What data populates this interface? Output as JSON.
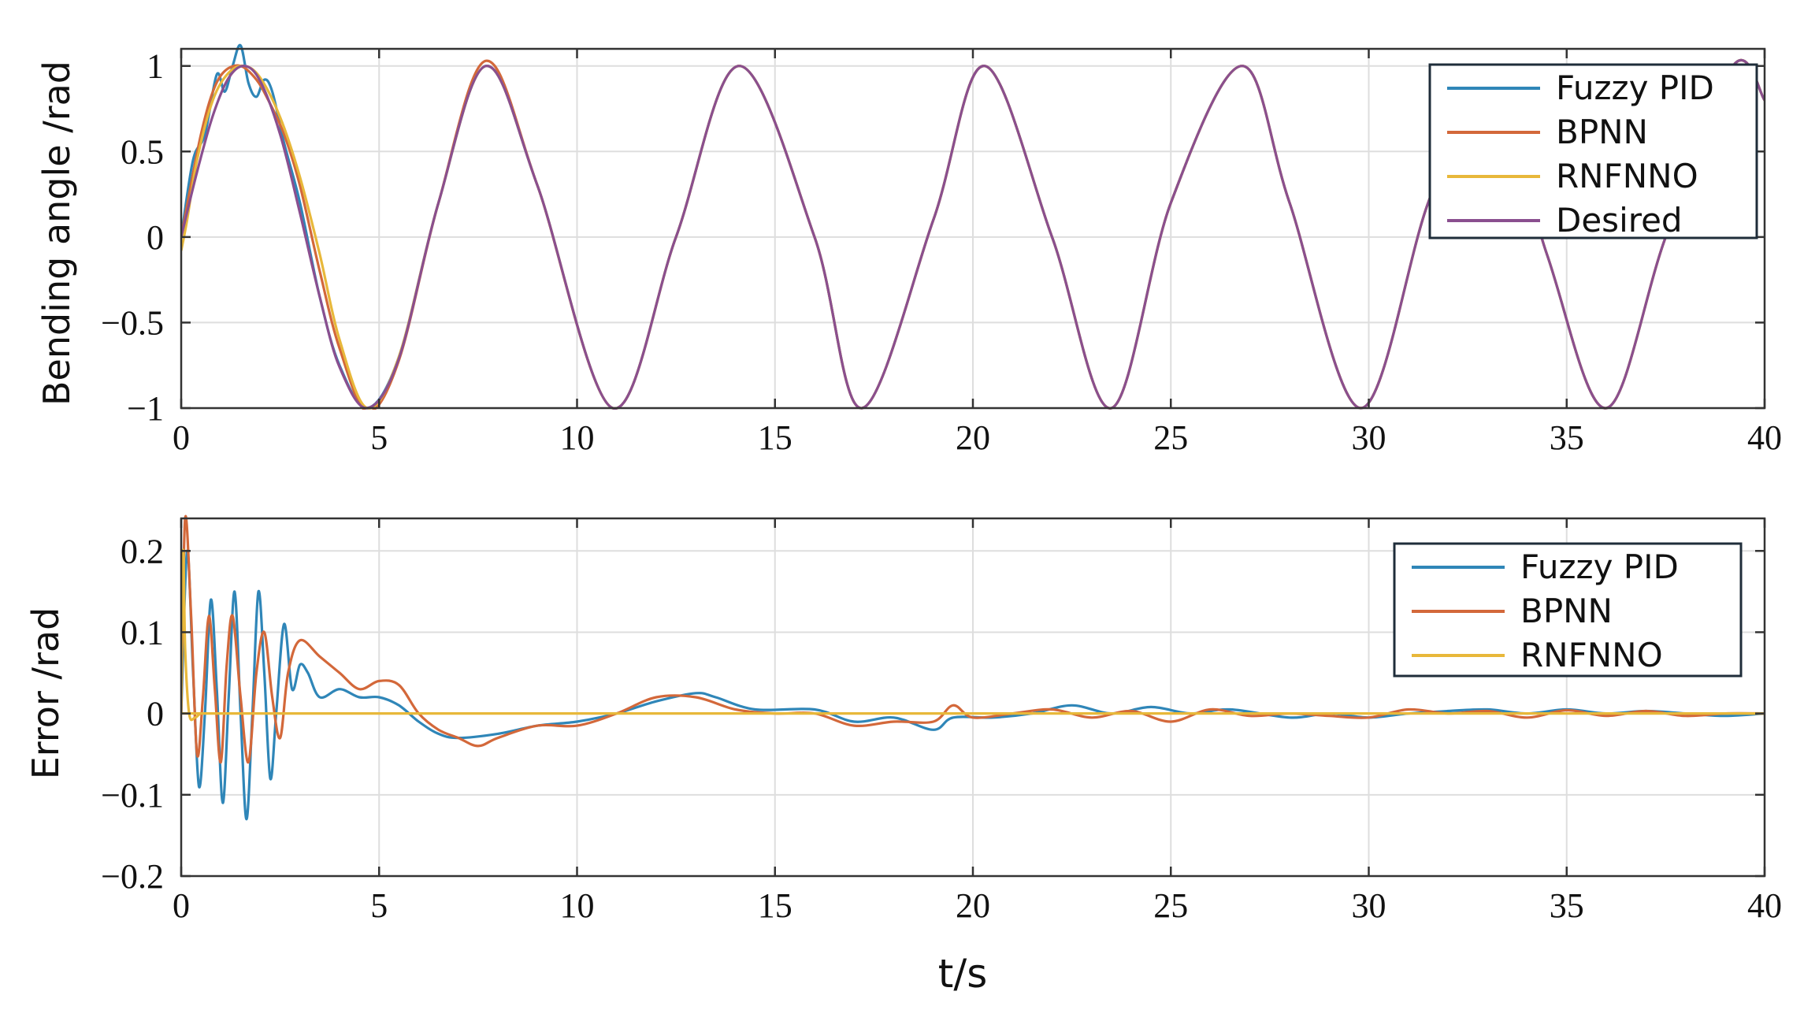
{
  "colors": {
    "Fuzzy PID": "#2f86b8",
    "BPNN": "#d3683a",
    "RNFNNO": "#e8b83a",
    "Desired": "#8a4f8f"
  },
  "chart_data": [
    {
      "type": "line",
      "id": "bending",
      "ylabel": "Bending angle /rad",
      "xlabel": "",
      "xlim": [
        0,
        40
      ],
      "ylim": [
        -1,
        1.1
      ],
      "xticks": [
        "0",
        "5",
        "10",
        "15",
        "20",
        "25",
        "30",
        "35",
        "40"
      ],
      "yticks": [
        "1",
        "0.5",
        "0",
        "−0.5",
        "−1"
      ],
      "grid": true,
      "legend": {
        "position": "top-right",
        "entries": [
          "Fuzzy PID",
          "BPNN",
          "RNFNNO",
          "Desired"
        ]
      },
      "series": [
        {
          "name": "Fuzzy PID",
          "x": [
            0,
            0.3,
            0.6,
            0.9,
            1.1,
            1.3,
            1.5,
            1.7,
            1.9,
            2.1,
            2.3,
            2.6,
            3.0,
            3.5,
            4.0,
            4.7,
            5.5,
            6.5,
            7.7,
            9.0,
            10.9,
            12.5,
            14.1,
            16.0,
            17.2,
            19.0,
            20.3,
            22.0,
            23.5,
            25.0,
            26.8,
            28.0,
            29.8,
            31.5,
            33.0,
            34.5,
            36.0,
            37.5,
            39.2,
            40.0
          ],
          "y": [
            0,
            0.45,
            0.6,
            0.95,
            0.85,
            1.0,
            1.12,
            0.9,
            0.82,
            0.92,
            0.85,
            0.55,
            0.2,
            -0.35,
            -0.75,
            -1.0,
            -0.7,
            0.2,
            1.0,
            0.3,
            -1.0,
            0.0,
            1.0,
            0.0,
            -1.0,
            0.1,
            1.0,
            0.0,
            -1.0,
            0.2,
            1.0,
            0.2,
            -1.0,
            0.2,
            1.0,
            -0.1,
            -1.0,
            0.0,
            1.0,
            0.8
          ]
        },
        {
          "name": "BPNN",
          "x": [
            0,
            0.2,
            0.5,
            0.8,
            1.1,
            1.5,
            1.9,
            2.2,
            2.6,
            3.0,
            3.5,
            4.0,
            4.7,
            5.5,
            6.5,
            7.7,
            9.0,
            10.9,
            12.5,
            14.1,
            16.0,
            17.2,
            19.0,
            20.3,
            22.0,
            23.5,
            25.0,
            26.8,
            28.0,
            29.8,
            31.5,
            33.0,
            34.5,
            36.0,
            37.5,
            39.2,
            40.0
          ],
          "y": [
            0,
            0.25,
            0.6,
            0.85,
            0.97,
            1.0,
            0.92,
            0.8,
            0.6,
            0.3,
            -0.2,
            -0.65,
            -1.02,
            -0.72,
            0.2,
            1.03,
            0.3,
            -1.0,
            0.0,
            1.0,
            0.0,
            -1.0,
            0.1,
            1.0,
            0.0,
            -1.0,
            0.2,
            1.0,
            0.2,
            -1.0,
            0.2,
            1.0,
            -0.1,
            -1.0,
            0.0,
            1.0,
            0.8
          ]
        },
        {
          "name": "RNFNNO",
          "x": [
            0,
            0.15,
            0.4,
            0.8,
            1.2,
            1.6,
            2.0,
            2.5,
            3.0,
            3.5,
            4.0,
            4.7,
            5.5,
            6.5,
            7.7,
            9.0,
            10.9,
            12.5,
            14.1,
            16.0,
            17.2,
            19.0,
            20.3,
            22.0,
            23.5,
            25.0,
            26.8,
            28.0,
            29.8,
            31.5,
            33.0,
            34.5,
            36.0,
            37.5,
            39.2,
            40.0
          ],
          "y": [
            -0.08,
            0.1,
            0.45,
            0.8,
            0.96,
            1.0,
            0.93,
            0.7,
            0.35,
            -0.1,
            -0.6,
            -1.0,
            -0.7,
            0.2,
            1.0,
            0.3,
            -1.0,
            0.0,
            1.0,
            0.0,
            -1.0,
            0.1,
            1.0,
            0.0,
            -1.0,
            0.2,
            1.0,
            0.2,
            -1.0,
            0.2,
            1.0,
            -0.1,
            -1.0,
            0.0,
            1.0,
            0.8
          ]
        },
        {
          "name": "Desired",
          "x": [
            0,
            0.4,
            0.8,
            1.2,
            1.6,
            2.0,
            2.5,
            3.0,
            3.5,
            4.0,
            4.7,
            5.5,
            6.5,
            7.7,
            9.0,
            10.9,
            12.5,
            14.1,
            16.0,
            17.2,
            19.0,
            20.3,
            22.0,
            23.5,
            25.0,
            26.8,
            28.0,
            29.8,
            31.5,
            33.0,
            34.5,
            36.0,
            37.5,
            39.2,
            40.0
          ],
          "y": [
            0,
            0.38,
            0.71,
            0.93,
            1.0,
            0.91,
            0.6,
            0.14,
            -0.35,
            -0.76,
            -1.0,
            -0.71,
            0.2,
            1.0,
            0.3,
            -1.0,
            0.0,
            1.0,
            0.0,
            -1.0,
            0.1,
            1.0,
            0.0,
            -1.0,
            0.2,
            1.0,
            0.2,
            -1.0,
            0.2,
            1.0,
            -0.1,
            -1.0,
            0.0,
            1.0,
            0.8
          ]
        }
      ]
    },
    {
      "type": "line",
      "id": "error",
      "ylabel": "Error /rad",
      "xlabel": "t/s",
      "xlim": [
        0,
        40
      ],
      "ylim": [
        -0.2,
        0.24
      ],
      "xticks": [
        "0",
        "5",
        "10",
        "15",
        "20",
        "25",
        "30",
        "35",
        "40"
      ],
      "yticks": [
        "0.2",
        "0.1",
        "0",
        "−0.1",
        "−0.2"
      ],
      "grid": true,
      "legend": {
        "position": "top-right",
        "entries": [
          "Fuzzy PID",
          "BPNN",
          "RNFNNO"
        ]
      },
      "series": [
        {
          "name": "Fuzzy PID",
          "x": [
            0,
            0.15,
            0.3,
            0.45,
            0.6,
            0.75,
            0.9,
            1.05,
            1.2,
            1.35,
            1.5,
            1.65,
            1.8,
            1.95,
            2.1,
            2.25,
            2.4,
            2.6,
            2.8,
            3.0,
            3.2,
            3.5,
            4.0,
            4.5,
            5.0,
            5.5,
            6.0,
            6.5,
            7.0,
            8.0,
            9.0,
            10.0,
            11.0,
            12.0,
            13.0,
            13.5,
            14.5,
            16.0,
            17.0,
            18.0,
            19.0,
            19.5,
            20.5,
            21.5,
            22.5,
            23.5,
            24.5,
            25.5,
            26.5,
            28.0,
            29.0,
            30.0,
            31.0,
            32.0,
            33.0,
            34.0,
            35.0,
            36.0,
            37.0,
            38.0,
            39.0,
            40.0
          ],
          "y": [
            0,
            0.2,
            0.05,
            -0.09,
            0.0,
            0.14,
            0.03,
            -0.11,
            0.02,
            0.15,
            0.0,
            -0.13,
            0.0,
            0.15,
            0.05,
            -0.08,
            0.0,
            0.11,
            0.03,
            0.06,
            0.05,
            0.02,
            0.03,
            0.02,
            0.02,
            0.01,
            -0.01,
            -0.025,
            -0.03,
            -0.025,
            -0.015,
            -0.01,
            0.0,
            0.015,
            0.025,
            0.02,
            0.005,
            0.005,
            -0.01,
            -0.005,
            -0.02,
            -0.005,
            -0.005,
            0.0,
            0.01,
            0.0,
            0.008,
            0.0,
            0.005,
            -0.005,
            0.0,
            -0.005,
            0.0,
            0.003,
            0.005,
            0.0,
            0.005,
            0.0,
            0.003,
            0.0,
            -0.003,
            0.0
          ]
        },
        {
          "name": "BPNN",
          "x": [
            0,
            0.1,
            0.25,
            0.4,
            0.55,
            0.7,
            0.85,
            1.0,
            1.15,
            1.3,
            1.5,
            1.7,
            1.9,
            2.1,
            2.3,
            2.5,
            2.7,
            3.0,
            3.5,
            4.0,
            4.5,
            5.0,
            5.5,
            6.0,
            6.5,
            7.0,
            7.5,
            8.0,
            9.0,
            10.0,
            11.0,
            12.0,
            13.0,
            14.0,
            15.0,
            16.0,
            17.0,
            18.0,
            19.0,
            19.5,
            20.0,
            21.0,
            22.0,
            23.0,
            24.0,
            25.0,
            26.0,
            27.0,
            28.0,
            29.0,
            30.0,
            31.0,
            32.0,
            33.0,
            34.0,
            35.0,
            36.0,
            37.0,
            38.0,
            39.0,
            40.0
          ],
          "y": [
            0,
            0.24,
            0.12,
            -0.05,
            0.02,
            0.12,
            0.03,
            -0.06,
            0.06,
            0.12,
            0.02,
            -0.06,
            0.05,
            0.1,
            0.02,
            -0.03,
            0.05,
            0.09,
            0.07,
            0.05,
            0.03,
            0.04,
            0.035,
            0.0,
            -0.02,
            -0.03,
            -0.04,
            -0.03,
            -0.015,
            -0.015,
            0.0,
            0.02,
            0.02,
            0.005,
            0.0,
            0.0,
            -0.015,
            -0.01,
            -0.01,
            0.01,
            -0.005,
            0.0,
            0.005,
            -0.005,
            0.003,
            -0.01,
            0.005,
            -0.003,
            0.0,
            -0.003,
            -0.005,
            0.005,
            0.0,
            0.003,
            -0.005,
            0.004,
            -0.003,
            0.003,
            -0.003,
            0.0,
            0.0
          ]
        },
        {
          "name": "RNFNNO",
          "x": [
            0,
            0.05,
            0.1,
            0.2,
            0.35,
            0.5,
            0.8,
            40.0
          ],
          "y": [
            0,
            0.2,
            0.08,
            0.0,
            -0.005,
            0.0,
            0.0,
            0.0
          ]
        }
      ]
    }
  ]
}
